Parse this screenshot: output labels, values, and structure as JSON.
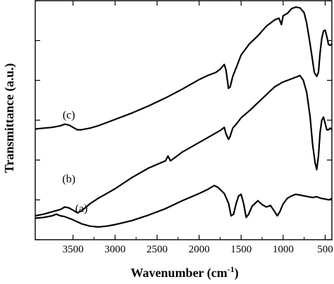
{
  "chart_data": {
    "type": "line",
    "xlabel": "Wavenumber (cm",
    "xlabel_sup": "-1",
    "xlabel_close": ")",
    "ylabel": "Transmittance (a.u.)",
    "x_reversed": true,
    "xlim": [
      3950,
      420
    ],
    "ylim": [
      0,
      300
    ],
    "x_ticks": [
      3500,
      3000,
      2500,
      2000,
      1500,
      1000,
      500
    ],
    "x_tick_labels": [
      "3500",
      "3000",
      "2500",
      "2000",
      "1500",
      "1000",
      "500"
    ],
    "y_ticks": [
      0,
      50,
      100,
      150,
      200,
      250,
      300
    ],
    "grid": false,
    "legend": "none",
    "series": [
      {
        "name": "(a)",
        "color": "#000000",
        "points": [
          [
            3950,
            27
          ],
          [
            3850,
            28
          ],
          [
            3750,
            30
          ],
          [
            3700,
            32
          ],
          [
            3650,
            30
          ],
          [
            3600,
            29
          ],
          [
            3500,
            25
          ],
          [
            3400,
            20
          ],
          [
            3300,
            17
          ],
          [
            3200,
            16
          ],
          [
            3100,
            17
          ],
          [
            3000,
            19
          ],
          [
            2800,
            24
          ],
          [
            2600,
            31
          ],
          [
            2400,
            39
          ],
          [
            2200,
            49
          ],
          [
            2000,
            58
          ],
          [
            1900,
            63
          ],
          [
            1820,
            68
          ],
          [
            1780,
            66
          ],
          [
            1740,
            62
          ],
          [
            1700,
            58
          ],
          [
            1650,
            46
          ],
          [
            1620,
            30
          ],
          [
            1590,
            32
          ],
          [
            1560,
            45
          ],
          [
            1530,
            55
          ],
          [
            1500,
            57
          ],
          [
            1470,
            45
          ],
          [
            1440,
            28
          ],
          [
            1410,
            32
          ],
          [
            1370,
            42
          ],
          [
            1330,
            46
          ],
          [
            1300,
            49
          ],
          [
            1250,
            44
          ],
          [
            1200,
            41
          ],
          [
            1150,
            43
          ],
          [
            1100,
            35
          ],
          [
            1070,
            30
          ],
          [
            1040,
            35
          ],
          [
            1000,
            45
          ],
          [
            950,
            52
          ],
          [
            900,
            55
          ],
          [
            850,
            57
          ],
          [
            800,
            56
          ],
          [
            750,
            55
          ],
          [
            700,
            54
          ],
          [
            650,
            53
          ],
          [
            600,
            54
          ],
          [
            550,
            52
          ],
          [
            500,
            51
          ],
          [
            450,
            50
          ],
          [
            420,
            52
          ]
        ]
      },
      {
        "name": "(b)",
        "color": "#000000",
        "points": [
          [
            3950,
            30
          ],
          [
            3850,
            32
          ],
          [
            3750,
            35
          ],
          [
            3650,
            38
          ],
          [
            3600,
            41
          ],
          [
            3550,
            40
          ],
          [
            3500,
            37
          ],
          [
            3450,
            34
          ],
          [
            3400,
            36
          ],
          [
            3300,
            45
          ],
          [
            3200,
            52
          ],
          [
            3100,
            58
          ],
          [
            3000,
            64
          ],
          [
            2800,
            78
          ],
          [
            2600,
            90
          ],
          [
            2400,
            99
          ],
          [
            2370,
            105
          ],
          [
            2340,
            99
          ],
          [
            2200,
            110
          ],
          [
            2000,
            122
          ],
          [
            1900,
            128
          ],
          [
            1800,
            134
          ],
          [
            1750,
            137
          ],
          [
            1700,
            141
          ],
          [
            1680,
            133
          ],
          [
            1650,
            126
          ],
          [
            1630,
            130
          ],
          [
            1600,
            140
          ],
          [
            1550,
            146
          ],
          [
            1500,
            153
          ],
          [
            1400,
            162
          ],
          [
            1300,
            172
          ],
          [
            1200,
            182
          ],
          [
            1100,
            192
          ],
          [
            1000,
            198
          ],
          [
            900,
            202
          ],
          [
            850,
            204
          ],
          [
            800,
            206
          ],
          [
            760,
            200
          ],
          [
            720,
            185
          ],
          [
            680,
            155
          ],
          [
            650,
            120
          ],
          [
            620,
            97
          ],
          [
            600,
            88
          ],
          [
            580,
            105
          ],
          [
            560,
            135
          ],
          [
            540,
            150
          ],
          [
            520,
            154
          ],
          [
            500,
            146
          ],
          [
            480,
            138
          ],
          [
            460,
            138
          ],
          [
            440,
            140
          ],
          [
            420,
            138
          ]
        ]
      },
      {
        "name": "(c)",
        "color": "#000000",
        "points": [
          [
            3950,
            139
          ],
          [
            3850,
            140
          ],
          [
            3750,
            141
          ],
          [
            3650,
            143
          ],
          [
            3600,
            145
          ],
          [
            3550,
            144
          ],
          [
            3500,
            141
          ],
          [
            3450,
            138
          ],
          [
            3400,
            138
          ],
          [
            3300,
            140
          ],
          [
            3200,
            143
          ],
          [
            3100,
            147
          ],
          [
            3000,
            151
          ],
          [
            2800,
            159
          ],
          [
            2600,
            168
          ],
          [
            2400,
            178
          ],
          [
            2200,
            189
          ],
          [
            2000,
            201
          ],
          [
            1900,
            206
          ],
          [
            1800,
            210
          ],
          [
            1750,
            214
          ],
          [
            1700,
            220
          ],
          [
            1680,
            213
          ],
          [
            1650,
            190
          ],
          [
            1630,
            192
          ],
          [
            1600,
            205
          ],
          [
            1550,
            218
          ],
          [
            1500,
            232
          ],
          [
            1400,
            246
          ],
          [
            1300,
            256
          ],
          [
            1200,
            268
          ],
          [
            1100,
            276
          ],
          [
            1050,
            278
          ],
          [
            1020,
            270
          ],
          [
            1000,
            281
          ],
          [
            950,
            284
          ],
          [
            900,
            290
          ],
          [
            850,
            292
          ],
          [
            800,
            291
          ],
          [
            750,
            285
          ],
          [
            720,
            272
          ],
          [
            680,
            246
          ],
          [
            650,
            225
          ],
          [
            630,
            210
          ],
          [
            600,
            205
          ],
          [
            580,
            210
          ],
          [
            560,
            235
          ],
          [
            540,
            253
          ],
          [
            520,
            262
          ],
          [
            500,
            263
          ],
          [
            480,
            255
          ],
          [
            460,
            245
          ],
          [
            440,
            244
          ],
          [
            420,
            246
          ]
        ]
      }
    ]
  }
}
